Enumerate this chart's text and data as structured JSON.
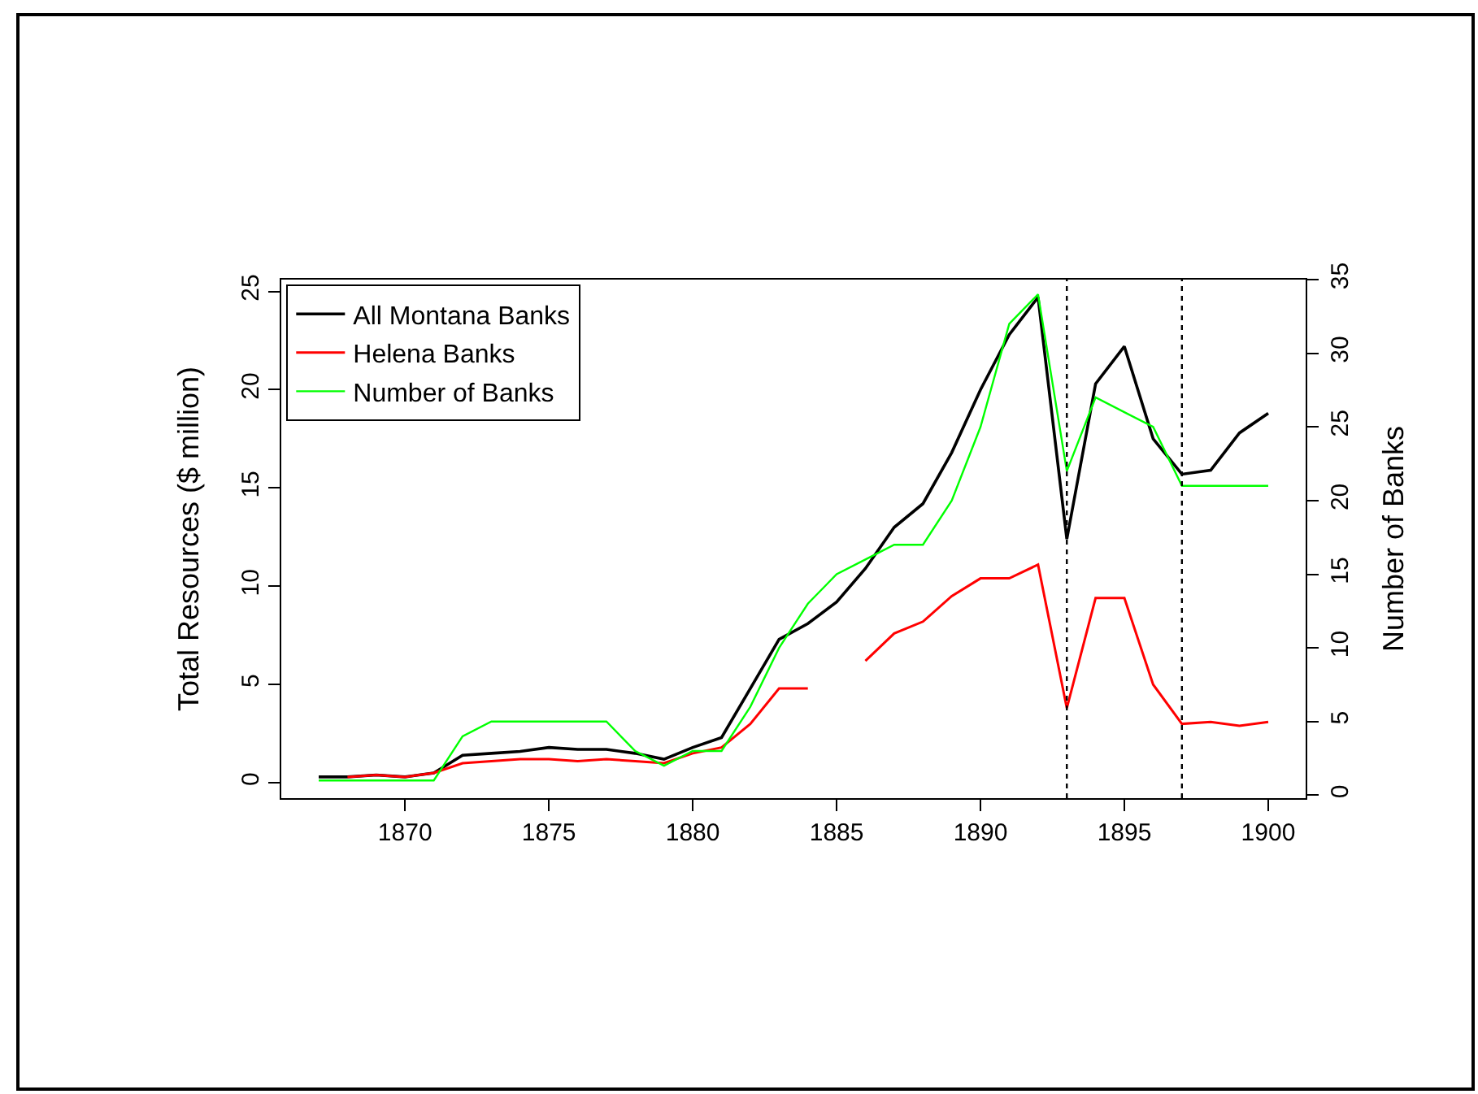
{
  "chart_data": {
    "type": "line",
    "ylabel": "Total Resources ($ million)",
    "y2label": "Number of Banks",
    "x": [
      1867,
      1868,
      1869,
      1870,
      1871,
      1872,
      1873,
      1874,
      1875,
      1876,
      1877,
      1878,
      1879,
      1880,
      1881,
      1882,
      1883,
      1884,
      1885,
      1886,
      1887,
      1888,
      1889,
      1890,
      1891,
      1892,
      1893,
      1894,
      1895,
      1896,
      1897,
      1898,
      1899,
      1900
    ],
    "series": [
      {
        "name": "All Montana Banks",
        "color": "#000000",
        "values": [
          0.3,
          0.3,
          0.4,
          0.3,
          0.5,
          1.4,
          1.5,
          1.6,
          1.8,
          1.7,
          1.7,
          1.5,
          1.2,
          1.8,
          2.3,
          4.8,
          7.3,
          8.1,
          9.2,
          10.9,
          13.0,
          14.2,
          16.8,
          20.0,
          22.8,
          24.7,
          12.4,
          20.3,
          22.2,
          17.5,
          15.7,
          15.9,
          17.8,
          18.8
        ]
      },
      {
        "name": "Helena Banks",
        "color": "#ff0000",
        "values": [
          null,
          0.3,
          0.4,
          0.3,
          0.5,
          1.0,
          1.1,
          1.2,
          1.2,
          1.1,
          1.2,
          1.1,
          1.0,
          1.5,
          1.8,
          3.0,
          4.8,
          4.8,
          null,
          6.2,
          7.6,
          8.2,
          9.5,
          10.4,
          10.4,
          11.1,
          3.8,
          9.4,
          9.4,
          5.0,
          3.0,
          3.1,
          2.9,
          3.1
        ]
      },
      {
        "name": "Number of Banks",
        "color": "#00ff00",
        "axis": "y2",
        "values": [
          1,
          1,
          1,
          1,
          1,
          4,
          5,
          5,
          5,
          5,
          5,
          3,
          2,
          3,
          3,
          6,
          10,
          13,
          15,
          16,
          17,
          17,
          20,
          25,
          32,
          34,
          22,
          27,
          26,
          25,
          21,
          21,
          21,
          21
        ]
      }
    ],
    "xlim": [
      1865.7,
      1901.3
    ],
    "xticks": [
      1870,
      1875,
      1880,
      1885,
      1890,
      1895,
      1900
    ],
    "ylim": [
      -0.78,
      25.6
    ],
    "yticks": [
      0,
      5,
      10,
      15,
      20,
      25
    ],
    "y2lim": [
      -0.2,
      35.0
    ],
    "y2ticks": [
      0,
      5,
      10,
      15,
      20,
      25,
      30,
      35
    ],
    "ref_lines": [
      {
        "axis": "x",
        "value": 1893,
        "color": "#000000",
        "line_style": "dotted"
      },
      {
        "axis": "x",
        "value": 1897,
        "color": "#000000",
        "line_style": "dotted"
      }
    ],
    "legend": "top left",
    "grid": false,
    "marker": "none",
    "line_style": "solid"
  }
}
